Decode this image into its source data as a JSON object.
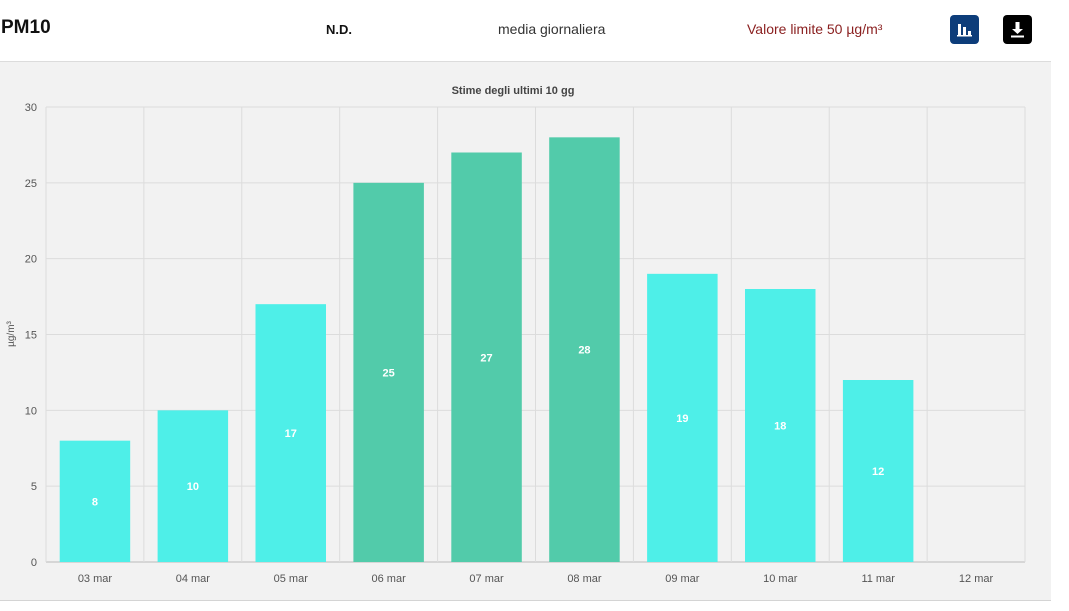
{
  "header": {
    "title": "PM10",
    "status": "N.D.",
    "average_label": "media giornaliera",
    "limit_label": "Valore limite 50 µg/m³",
    "chart_icon": "bar-chart-icon",
    "download_icon": "download-icon"
  },
  "colors": {
    "bar_normal": "#4eefe8",
    "bar_high": "#52cbaa",
    "grid": "#dcdcdc",
    "axis_text": "#555555",
    "label_text": "#ffffff"
  },
  "chart_data": {
    "type": "bar",
    "title": "Stime degli ultimi 10 gg",
    "xlabel": "",
    "ylabel": "µg/m³",
    "ylim": [
      0,
      30
    ],
    "yticks": [
      0,
      5,
      10,
      15,
      20,
      25,
      30
    ],
    "categories": [
      "03 mar",
      "04 mar",
      "05 mar",
      "06 mar",
      "07 mar",
      "08 mar",
      "09 mar",
      "10 mar",
      "11 mar",
      "12 mar"
    ],
    "values": [
      8,
      10,
      17,
      25,
      27,
      28,
      19,
      18,
      12,
      null
    ],
    "bar_colors": [
      "#4eefe8",
      "#4eefe8",
      "#4eefe8",
      "#52cbaa",
      "#52cbaa",
      "#52cbaa",
      "#4eefe8",
      "#4eefe8",
      "#4eefe8",
      "#4eefe8"
    ],
    "grid": true,
    "data_labels": true
  }
}
